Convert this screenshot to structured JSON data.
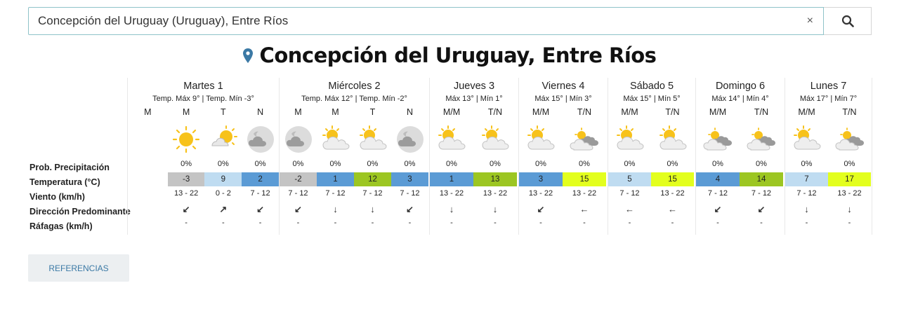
{
  "search": {
    "value": "Concepción del Uruguay (Uruguay), Entre Ríos",
    "clear_label": "×"
  },
  "title": "Concepción del Uruguay, Entre Ríos",
  "labels": [
    "Prob. Precipitación",
    "Temperatura (°C)",
    "Viento (km/h)",
    "Dirección Predominante",
    "Ráfagas (km/h)"
  ],
  "days": [
    {
      "name": "Martes 1",
      "temps": "Temp. Máx 9° | Temp. Mín -3°",
      "periods": [
        {
          "label": "M",
          "icon": "none",
          "prob": "",
          "temp": "",
          "wind": "",
          "dir": "",
          "gust": ""
        },
        {
          "label": "M",
          "icon": "sun-icon",
          "prob": "0%",
          "temp": "-3",
          "color": "#c4c4c4",
          "wind": "13 - 22",
          "dir": "↙",
          "gust": "-"
        },
        {
          "label": "T",
          "icon": "partly-sunny-icon",
          "prob": "0%",
          "temp": "9",
          "color": "#bfdcf1",
          "wind": "0 - 2",
          "dir": "↗",
          "gust": "-"
        },
        {
          "label": "N",
          "icon": "cloudy-night-icon",
          "prob": "0%",
          "temp": "2",
          "color": "#5b9bd5",
          "wind": "7 - 12",
          "dir": "↙",
          "gust": "-"
        }
      ]
    },
    {
      "name": "Miércoles 2",
      "temps": "Temp. Máx 12° | Temp. Mín -2°",
      "periods": [
        {
          "label": "M",
          "icon": "cloudy-night-icon",
          "prob": "0%",
          "temp": "-2",
          "color": "#c4c4c4",
          "wind": "7 - 12",
          "dir": "↙",
          "gust": "-"
        },
        {
          "label": "M",
          "icon": "partly-cloudy-icon",
          "prob": "0%",
          "temp": "1",
          "color": "#5b9bd5",
          "wind": "7 - 12",
          "dir": "↓",
          "gust": "-"
        },
        {
          "label": "T",
          "icon": "partly-cloudy-icon",
          "prob": "0%",
          "temp": "12",
          "color": "#9cc622",
          "wind": "7 - 12",
          "dir": "↓",
          "gust": "-"
        },
        {
          "label": "N",
          "icon": "cloudy-night-icon",
          "prob": "0%",
          "temp": "3",
          "color": "#5b9bd5",
          "wind": "7 - 12",
          "dir": "↙",
          "gust": "-"
        }
      ]
    },
    {
      "name": "Jueves 3",
      "temps": "Máx 13° | Mín 1°",
      "periods": [
        {
          "label": "M/M",
          "icon": "partly-cloudy-icon",
          "prob": "0%",
          "temp": "1",
          "color": "#5b9bd5",
          "wind": "13 - 22",
          "dir": "↓",
          "gust": "-"
        },
        {
          "label": "T/N",
          "icon": "partly-cloudy-icon",
          "prob": "0%",
          "temp": "13",
          "color": "#9cc622",
          "wind": "13 - 22",
          "dir": "↓",
          "gust": "-"
        }
      ]
    },
    {
      "name": "Viernes 4",
      "temps": "Máx 15° | Mín 3°",
      "periods": [
        {
          "label": "M/M",
          "icon": "partly-cloudy-icon",
          "prob": "0%",
          "temp": "3",
          "color": "#5b9bd5",
          "wind": "13 - 22",
          "dir": "↙",
          "gust": "-"
        },
        {
          "label": "T/N",
          "icon": "mostly-cloudy-icon",
          "prob": "0%",
          "temp": "15",
          "color": "#e3ff1e",
          "wind": "13 - 22",
          "dir": "←",
          "gust": "-"
        }
      ]
    },
    {
      "name": "Sábado 5",
      "temps": "Máx 15° | Mín 5°",
      "periods": [
        {
          "label": "M/M",
          "icon": "partly-cloudy-icon",
          "prob": "0%",
          "temp": "5",
          "color": "#bfdcf1",
          "wind": "7 - 12",
          "dir": "←",
          "gust": "-"
        },
        {
          "label": "T/N",
          "icon": "partly-cloudy-icon",
          "prob": "0%",
          "temp": "15",
          "color": "#e3ff1e",
          "wind": "13 - 22",
          "dir": "←",
          "gust": "-"
        }
      ]
    },
    {
      "name": "Domingo 6",
      "temps": "Máx 14° | Mín 4°",
      "periods": [
        {
          "label": "M/M",
          "icon": "mostly-cloudy-icon",
          "prob": "0%",
          "temp": "4",
          "color": "#5b9bd5",
          "wind": "7 - 12",
          "dir": "↙",
          "gust": "-"
        },
        {
          "label": "T/N",
          "icon": "mostly-cloudy-icon",
          "prob": "0%",
          "temp": "14",
          "color": "#9cc622",
          "wind": "7 - 12",
          "dir": "↙",
          "gust": "-"
        }
      ]
    },
    {
      "name": "Lunes 7",
      "temps": "Máx 17° | Mín 7°",
      "periods": [
        {
          "label": "M/M",
          "icon": "partly-cloudy-icon",
          "prob": "0%",
          "temp": "7",
          "color": "#bfdcf1",
          "wind": "7 - 12",
          "dir": "↓",
          "gust": "-"
        },
        {
          "label": "T/N",
          "icon": "mostly-cloudy-icon",
          "prob": "0%",
          "temp": "17",
          "color": "#e3ff1e",
          "wind": "13 - 22",
          "dir": "↓",
          "gust": "-"
        }
      ]
    }
  ],
  "references_label": "REFERENCIAS"
}
